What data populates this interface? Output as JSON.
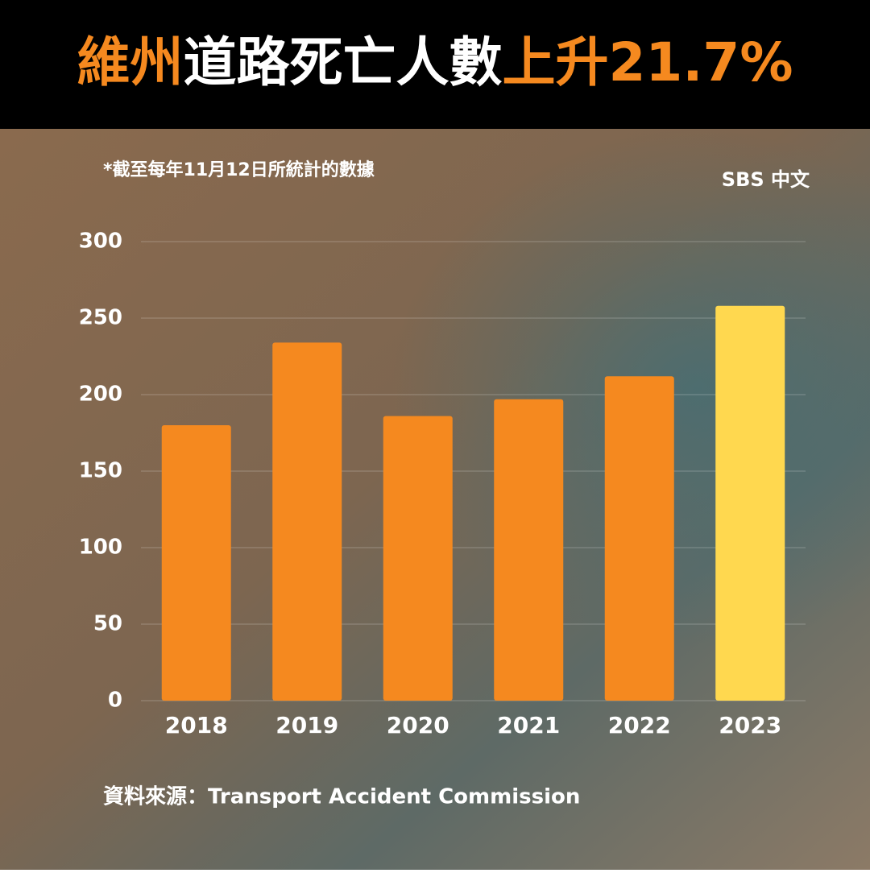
{
  "chart_data": {
    "type": "bar",
    "title": [
      "維州",
      "道路死亡人數",
      "上升21.7%"
    ],
    "title_colors": [
      "#f5891f",
      "#ffffff",
      "#f5891f"
    ],
    "note": "*截至每年11月12日所統計的數據",
    "logo": "SBS 中文",
    "source": "資料來源：Transport Accident Commission",
    "categories": [
      "2018",
      "2019",
      "2020",
      "2021",
      "2022",
      "2023"
    ],
    "values": [
      180,
      234,
      186,
      197,
      212,
      258
    ],
    "colors": [
      "#f5891f",
      "#f5891f",
      "#f5891f",
      "#f5891f",
      "#f5891f",
      "#ffd84f"
    ],
    "ylim": [
      0,
      300
    ],
    "yticks": [
      0,
      50,
      100,
      150,
      200,
      250,
      300
    ],
    "grid": true
  }
}
